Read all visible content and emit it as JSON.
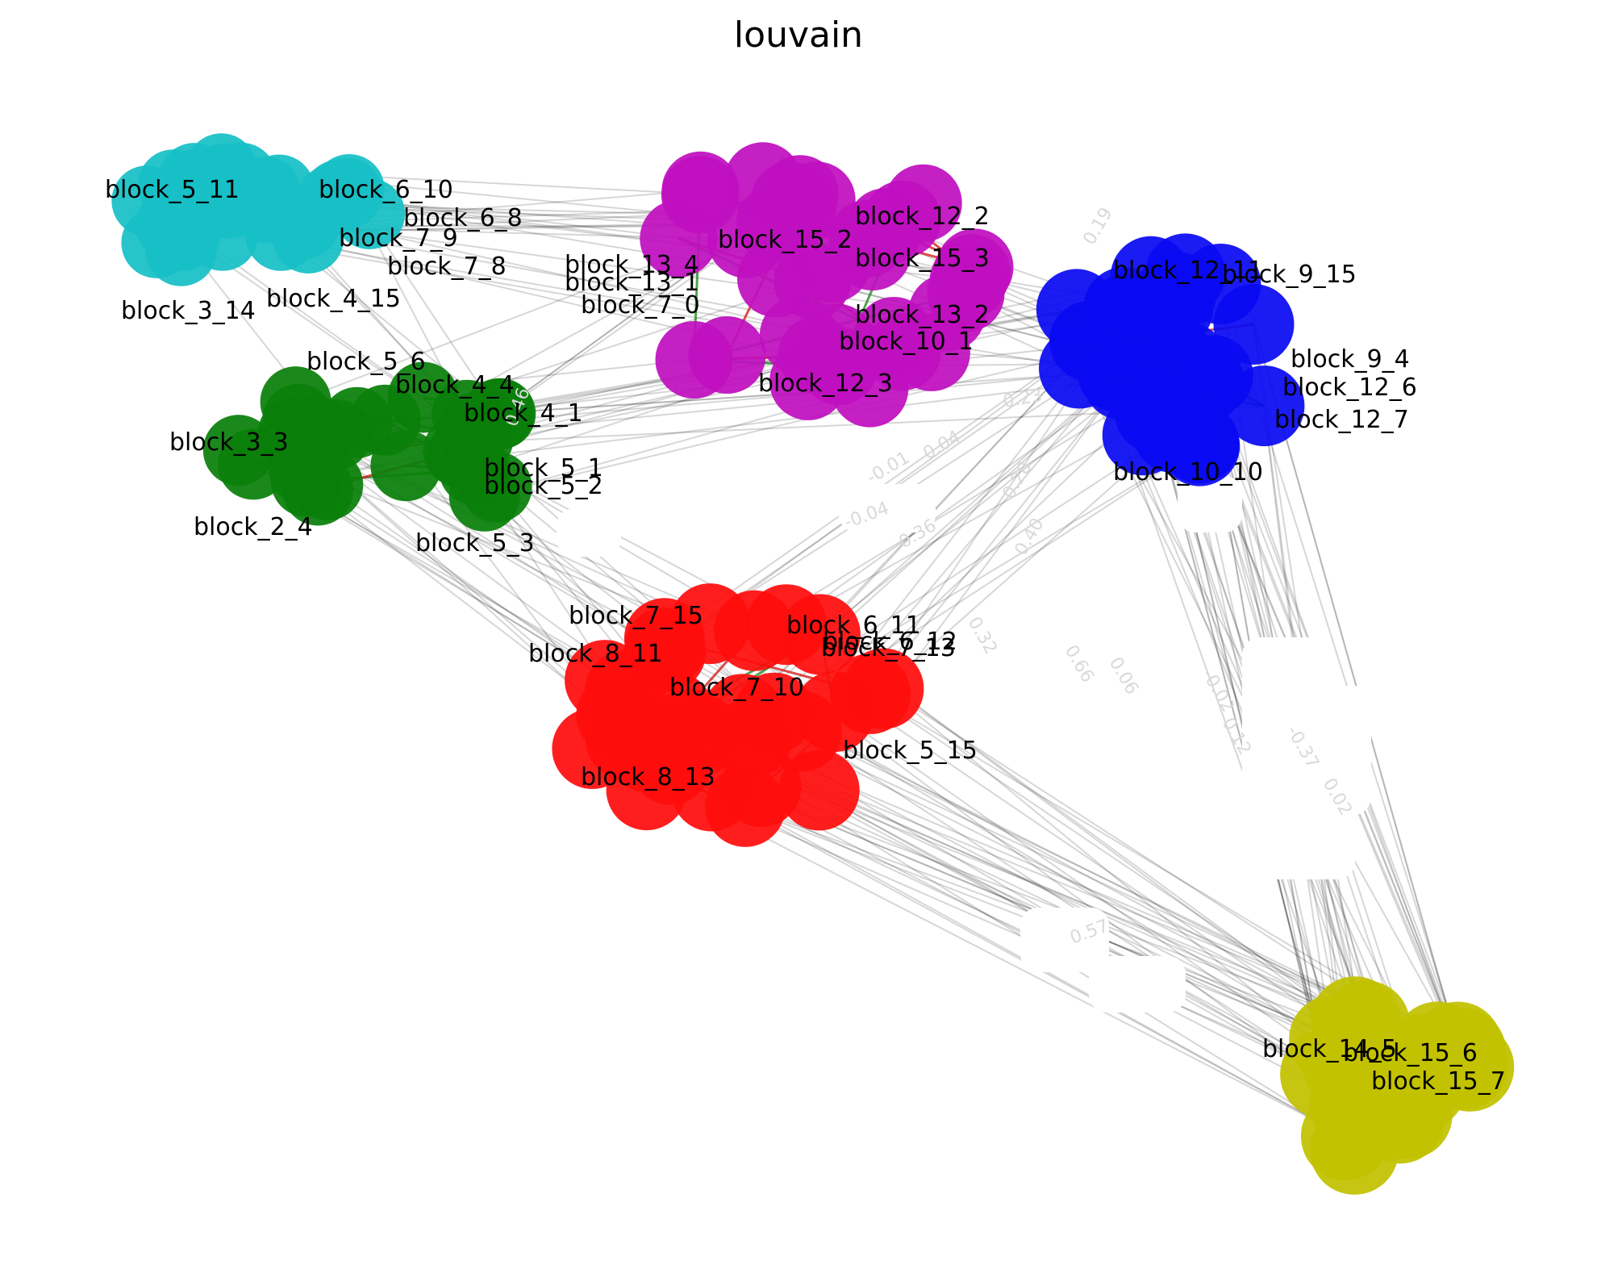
{
  "title": "louvain",
  "communities": [
    {
      "name": "cyan",
      "color": "#17bfc6",
      "nodes": [
        "block_5_11",
        "block_6_10",
        "block_6_8",
        "block_7_9",
        "block_7_8",
        "block_4_15",
        "block_3_14"
      ]
    },
    {
      "name": "green",
      "color": "#0a7f0a",
      "nodes": [
        "block_5_6",
        "block_4_4",
        "block_4_1",
        "block_3_3",
        "block_5_1",
        "block_5_2",
        "block_2_4",
        "block_5_3"
      ]
    },
    {
      "name": "magenta",
      "color": "#bf0fbf",
      "nodes": [
        "block_12_2",
        "block_15_2",
        "block_15_3",
        "block_13_4",
        "block_13_1",
        "block_13_2",
        "block_10_1",
        "block_12_3",
        "block_7_0"
      ]
    },
    {
      "name": "blue",
      "color": "#0a0af2",
      "nodes": [
        "block_12_11",
        "block_9_15",
        "block_9_4",
        "block_12_6",
        "block_12_7",
        "block_10_10"
      ]
    },
    {
      "name": "red",
      "color": "#ff0d0d",
      "nodes": [
        "block_7_15",
        "block_8_11",
        "block_6_11",
        "block_6_12",
        "block_7_13",
        "block_7_10",
        "block_5_15",
        "block_8_13"
      ]
    },
    {
      "name": "yellow",
      "color": "#c2c200",
      "nodes": [
        "block_14_5",
        "block_15_6",
        "block_15_7"
      ]
    }
  ],
  "edge_weight_labels": [
    "0.19",
    "-0.01",
    "0.04",
    "-0.04",
    "0.36",
    "0.28",
    "0.40",
    "0.23",
    "0.32",
    "0.66",
    "0.06",
    "-0.02",
    "0.12",
    "-0.37",
    "0.02",
    "0.57",
    "0.46"
  ]
}
